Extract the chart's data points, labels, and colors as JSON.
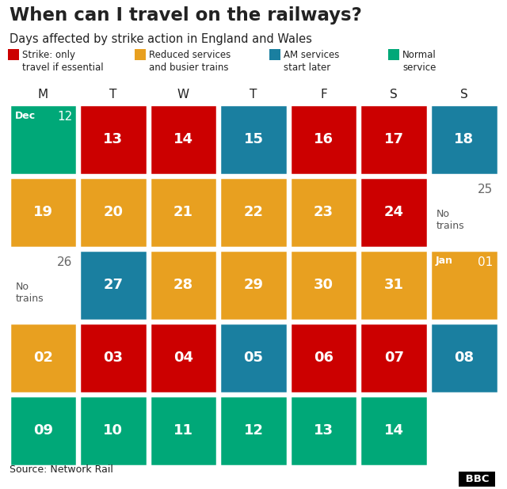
{
  "title": "When can I travel on the railways?",
  "subtitle": "Days affected by strike action in England and Wales",
  "source": "Source: Network Rail",
  "day_headers": [
    "M",
    "T",
    "W",
    "T",
    "F",
    "S",
    "S"
  ],
  "colors": {
    "red": "#cc0000",
    "orange": "#e8a020",
    "blue": "#1a7fa0",
    "green": "#00a878",
    "white": "#ffffff",
    "bg": "#ffffff",
    "text_dark": "#222222",
    "text_white": "#ffffff"
  },
  "legend": [
    {
      "label": "Strike: only\ntravel if essential",
      "color": "#cc0000"
    },
    {
      "label": "Reduced services\nand busier trains",
      "color": "#e8a020"
    },
    {
      "label": "AM services\nstart later",
      "color": "#1a7fa0"
    },
    {
      "label": "Normal\nservice",
      "color": "#00a878"
    }
  ],
  "rows": [
    {
      "cells": [
        {
          "date": "12",
          "color": "green",
          "month_label": "Dec",
          "text_color": "white"
        },
        {
          "date": "13",
          "color": "red",
          "text_color": "white"
        },
        {
          "date": "14",
          "color": "red",
          "text_color": "white"
        },
        {
          "date": "15",
          "color": "blue",
          "text_color": "white"
        },
        {
          "date": "16",
          "color": "red",
          "text_color": "white"
        },
        {
          "date": "17",
          "color": "red",
          "text_color": "white"
        },
        {
          "date": "18",
          "color": "blue",
          "text_color": "white"
        }
      ]
    },
    {
      "cells": [
        {
          "date": "19",
          "color": "orange",
          "text_color": "white"
        },
        {
          "date": "20",
          "color": "orange",
          "text_color": "white"
        },
        {
          "date": "21",
          "color": "orange",
          "text_color": "white"
        },
        {
          "date": "22",
          "color": "orange",
          "text_color": "white"
        },
        {
          "date": "23",
          "color": "orange",
          "text_color": "white"
        },
        {
          "date": "24",
          "color": "red",
          "text_color": "white"
        },
        {
          "date": "25",
          "color": "white",
          "text_color": "dark",
          "extra_label": "No\ntrains"
        }
      ]
    },
    {
      "cells": [
        {
          "date": "26",
          "color": "white",
          "text_color": "dark",
          "extra_label": "No\ntrains"
        },
        {
          "date": "27",
          "color": "blue",
          "text_color": "white"
        },
        {
          "date": "28",
          "color": "orange",
          "text_color": "white"
        },
        {
          "date": "29",
          "color": "orange",
          "text_color": "white"
        },
        {
          "date": "30",
          "color": "orange",
          "text_color": "white"
        },
        {
          "date": "31",
          "color": "orange",
          "text_color": "white"
        },
        {
          "date": "01",
          "color": "orange",
          "month_label": "Jan",
          "text_color": "white"
        }
      ]
    },
    {
      "cells": [
        {
          "date": "02",
          "color": "orange",
          "text_color": "white"
        },
        {
          "date": "03",
          "color": "red",
          "text_color": "white"
        },
        {
          "date": "04",
          "color": "red",
          "text_color": "white"
        },
        {
          "date": "05",
          "color": "blue",
          "text_color": "white"
        },
        {
          "date": "06",
          "color": "red",
          "text_color": "white"
        },
        {
          "date": "07",
          "color": "red",
          "text_color": "white"
        },
        {
          "date": "08",
          "color": "blue",
          "text_color": "white"
        }
      ]
    },
    {
      "cells": [
        {
          "date": "09",
          "color": "green",
          "text_color": "white"
        },
        {
          "date": "10",
          "color": "green",
          "text_color": "white"
        },
        {
          "date": "11",
          "color": "green",
          "text_color": "white"
        },
        {
          "date": "12",
          "color": "green",
          "text_color": "white"
        },
        {
          "date": "13",
          "color": "green",
          "text_color": "white"
        },
        {
          "date": "14",
          "color": "green",
          "text_color": "white"
        },
        {
          "date": "",
          "color": "white",
          "text_color": "dark"
        }
      ]
    }
  ]
}
